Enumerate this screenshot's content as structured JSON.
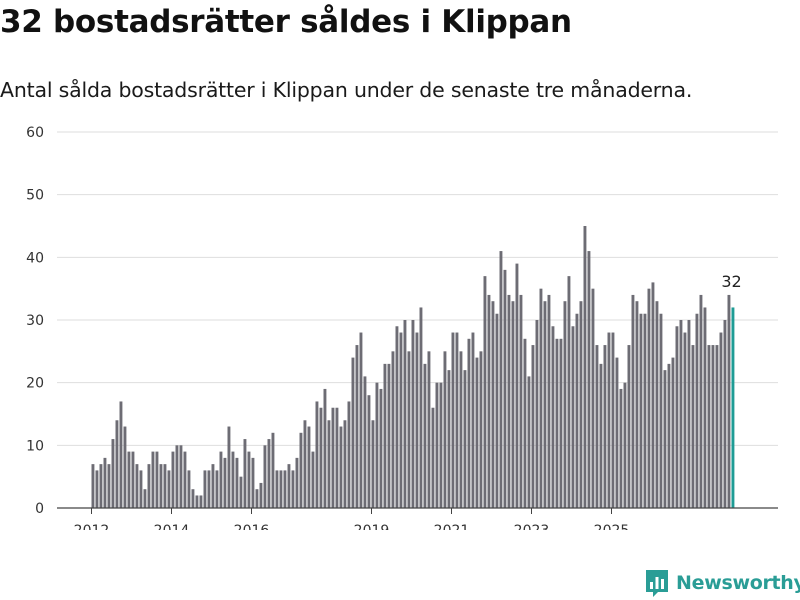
{
  "title": "32 bostadsrätter såldes i Klippan",
  "subtitle": "Antal sålda bostadsrätter i Klippan under de senaste tre månaderna.",
  "brand": {
    "name": "Newsworthy",
    "icon": "newsworthy-logo-icon",
    "color": "#2a9d96"
  },
  "colors": {
    "bar": "#6d6c74",
    "highlight": "#1e9c95",
    "grid": "#dedede"
  },
  "chart_data": {
    "type": "bar",
    "title": "",
    "xlabel": "",
    "ylabel": "",
    "ylim": [
      0,
      60
    ],
    "yticks": [
      0,
      10,
      20,
      30,
      40,
      50,
      60
    ],
    "x_ticks": [
      {
        "label": "2012",
        "index": 0
      },
      {
        "label": "2014",
        "index": 20
      },
      {
        "label": "2016",
        "index": 40
      },
      {
        "label": "2019",
        "index": 70
      },
      {
        "label": "2021",
        "index": 90
      },
      {
        "label": "2023",
        "index": 110
      },
      {
        "label": "2025",
        "index": 130
      }
    ],
    "grid": true,
    "legend": "none",
    "highlight_last": true,
    "highlight_label": "32",
    "values": [
      7,
      6,
      7,
      8,
      7,
      11,
      14,
      17,
      13,
      9,
      9,
      7,
      6,
      3,
      7,
      9,
      9,
      7,
      7,
      6,
      9,
      10,
      10,
      9,
      6,
      3,
      2,
      2,
      6,
      6,
      7,
      6,
      9,
      8,
      13,
      9,
      8,
      5,
      11,
      9,
      8,
      3,
      4,
      10,
      11,
      12,
      6,
      6,
      6,
      7,
      6,
      8,
      12,
      14,
      13,
      9,
      17,
      16,
      19,
      14,
      16,
      16,
      13,
      14,
      17,
      24,
      26,
      28,
      21,
      18,
      14,
      20,
      19,
      23,
      23,
      25,
      29,
      28,
      30,
      25,
      30,
      28,
      32,
      23,
      25,
      16,
      20,
      20,
      25,
      22,
      28,
      28,
      25,
      22,
      27,
      28,
      24,
      25,
      37,
      34,
      33,
      31,
      41,
      38,
      34,
      33,
      39,
      34,
      27,
      21,
      26,
      30,
      35,
      33,
      34,
      29,
      27,
      27,
      33,
      37,
      29,
      31,
      33,
      45,
      41,
      35,
      26,
      23,
      26,
      28,
      28,
      24,
      19,
      20,
      26,
      34,
      33,
      31,
      31,
      35,
      36,
      33,
      31,
      22,
      23,
      24,
      29,
      30,
      28,
      30,
      26,
      31,
      34,
      32,
      26,
      26,
      26,
      28,
      30,
      34,
      32
    ]
  }
}
